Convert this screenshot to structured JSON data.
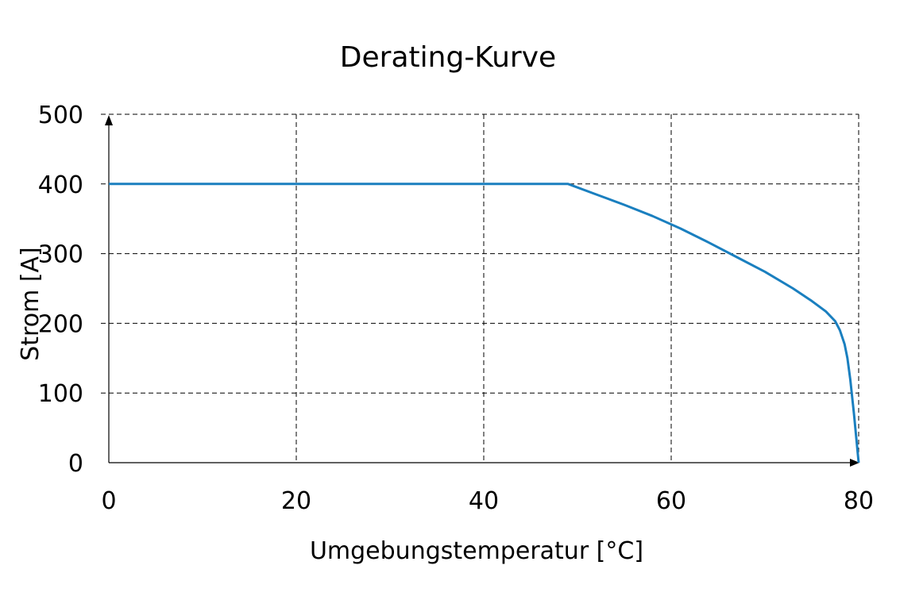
{
  "chart_data": {
    "type": "line",
    "title": "Derating-Kurve",
    "xlabel": "Umgebungstemperatur [°C]",
    "ylabel": "Strom [A]",
    "xlim": [
      0,
      80
    ],
    "ylim": [
      0,
      500
    ],
    "xticks": [
      "0",
      "20",
      "40",
      "60",
      "80"
    ],
    "yticks": [
      "500",
      "400",
      "300",
      "200",
      "100",
      "0"
    ],
    "grid": true,
    "series": [
      {
        "color": "#1a7fbf",
        "x": [
          0,
          49,
          52,
          55,
          58,
          61,
          64,
          67,
          70,
          73,
          75,
          76.5,
          77.5,
          78,
          78.5,
          78.8,
          79.1,
          79.5,
          80
        ],
        "y": [
          400,
          400,
          385,
          370,
          354,
          336,
          316,
          295,
          274,
          250,
          232,
          217,
          203,
          190,
          170,
          150,
          120,
          70,
          0
        ]
      }
    ]
  }
}
